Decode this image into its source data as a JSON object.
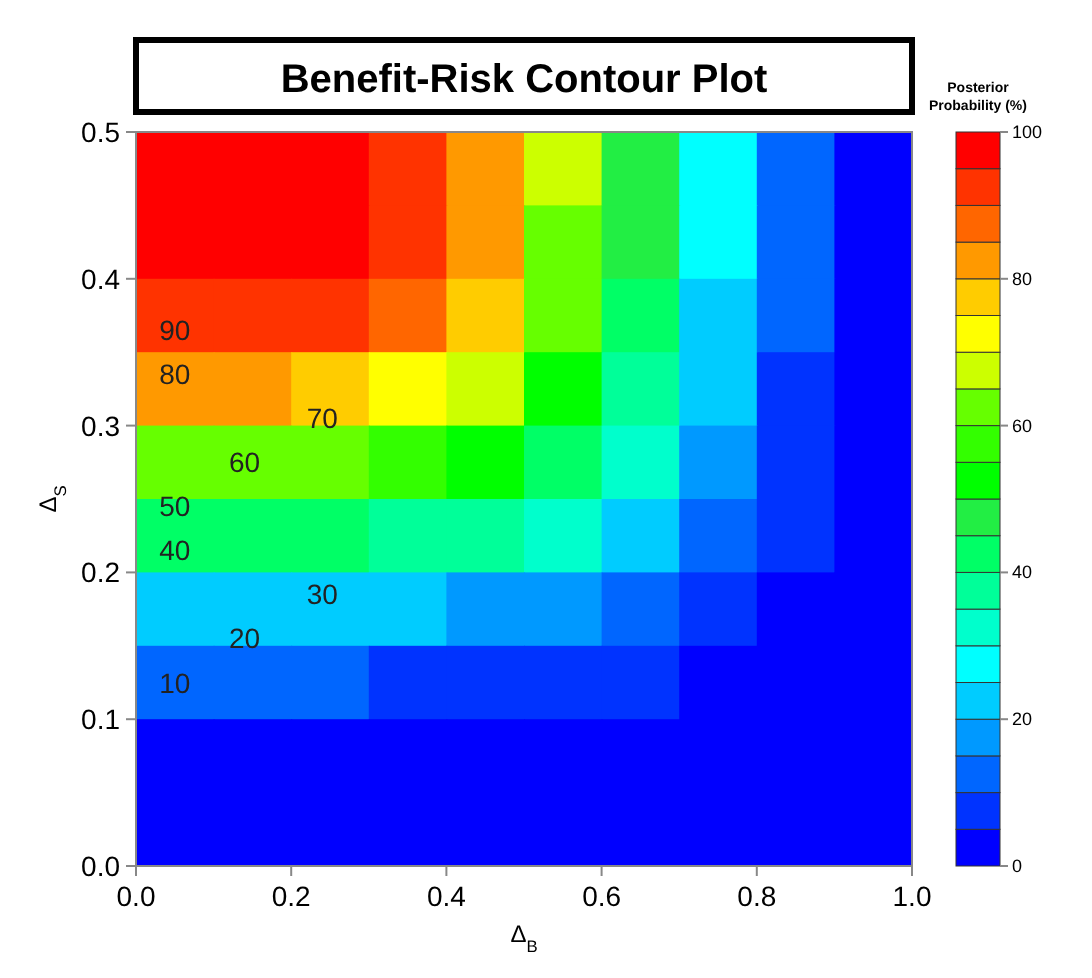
{
  "chart_data": {
    "type": "heatmap",
    "title": "Benefit-Risk Contour Plot",
    "xlabel": "Δ$_{B}$",
    "ylabel": "Δ$_{S}$",
    "clabel": "Posterior Probability (%)",
    "x": [
      0.05,
      0.15,
      0.25,
      0.35,
      0.45,
      0.55,
      0.65,
      0.75,
      0.85,
      0.95
    ],
    "y": [
      0.475,
      0.425,
      0.375,
      0.325,
      0.275,
      0.225,
      0.175,
      0.125,
      0.075,
      0.025
    ],
    "xlim": [
      0,
      1
    ],
    "xticks": [
      {
        "value": 0,
        "label": "0.0"
      },
      0.2,
      0.4,
      0.6,
      0.8,
      {
        "value": 1,
        "label": "1.0"
      }
    ],
    "ylim": [
      0,
      0.5
    ],
    "yticks": [
      {
        "value": 0,
        "label": "0.0"
      },
      0.1,
      0.2,
      0.3,
      0.4,
      0.5
    ],
    "clim": [
      0,
      100
    ],
    "cticks": [
      0,
      20,
      40,
      60,
      80,
      100
    ],
    "colors": [
      "#0000ff",
      "#0033ff",
      "#0066ff",
      "#0099ff",
      "#00ccff",
      "#00ffff",
      "#00ffcc",
      "#00ff99",
      "#00ff66",
      "#22ee44",
      "#00ff00",
      "#33ff00",
      "#66ff00",
      "#ccff00",
      "#ffff00",
      "#ffcc00",
      "#ff9900",
      "#ff6600",
      "#ff3300",
      "#ff0000"
    ],
    "cells": [
      [
        100,
        100,
        99,
        93,
        83,
        66,
        46,
        26,
        12,
        3
      ],
      [
        98,
        98,
        96,
        90,
        80,
        64,
        45,
        25,
        11,
        3
      ],
      [
        92,
        92,
        90,
        85,
        75,
        60,
        42,
        24,
        10,
        2
      ],
      [
        80,
        80,
        78,
        74,
        66,
        54,
        38,
        21,
        9,
        2
      ],
      [
        63,
        63,
        62,
        58,
        52,
        44,
        32,
        18,
        8,
        1
      ],
      [
        41,
        41,
        40,
        38,
        35,
        30,
        23,
        14,
        6,
        1
      ],
      [
        22,
        22,
        21,
        20,
        19,
        16,
        13,
        8,
        4,
        1
      ],
      [
        10,
        10,
        10,
        9,
        9,
        8,
        6,
        4,
        2,
        0
      ],
      [
        2,
        2,
        2,
        2,
        2,
        2,
        1,
        1,
        0,
        0
      ],
      [
        0,
        0,
        0,
        0,
        0,
        0,
        0,
        0,
        0,
        0
      ]
    ],
    "annotations": [
      "90",
      "80",
      "70",
      "60",
      "50",
      "40",
      "30",
      "20",
      "10"
    ]
  }
}
